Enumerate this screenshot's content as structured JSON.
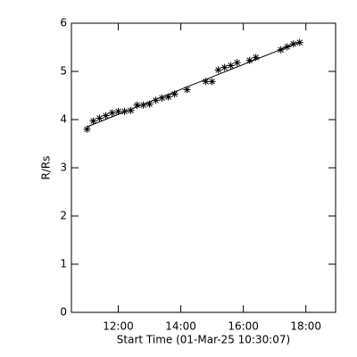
{
  "chart_data": {
    "type": "scatter",
    "x_label": "Start Time (01-Mar-25 10:30:07)",
    "y_label": "R/Rs",
    "x": [
      11.0,
      11.2,
      11.4,
      11.6,
      11.8,
      12.0,
      12.2,
      12.4,
      12.6,
      12.8,
      13.0,
      13.2,
      13.4,
      13.6,
      13.8,
      14.2,
      14.8,
      15.0,
      15.2,
      15.4,
      15.6,
      15.8,
      16.2,
      16.4,
      17.2,
      17.4,
      17.6,
      17.8
    ],
    "values": [
      3.8,
      3.97,
      4.03,
      4.08,
      4.14,
      4.17,
      4.17,
      4.19,
      4.3,
      4.3,
      4.32,
      4.4,
      4.45,
      4.47,
      4.53,
      4.62,
      4.79,
      4.79,
      5.03,
      5.08,
      5.12,
      5.18,
      5.23,
      5.29,
      5.45,
      5.51,
      5.57,
      5.6
    ],
    "fit": {
      "x": [
        11.0,
        17.8
      ],
      "values": [
        3.85,
        5.61
      ]
    },
    "color": "#000000",
    "xlim": [
      10.5,
      18.95
    ],
    "xticks": [
      {
        "value": 12,
        "label": "12:00"
      },
      {
        "value": 14,
        "label": "14:00"
      },
      {
        "value": 16,
        "label": "16:00"
      },
      {
        "value": 18,
        "label": "18:00"
      }
    ],
    "ylim": [
      0,
      6
    ],
    "yticks": [
      0,
      1,
      2,
      3,
      4,
      5,
      6
    ]
  }
}
